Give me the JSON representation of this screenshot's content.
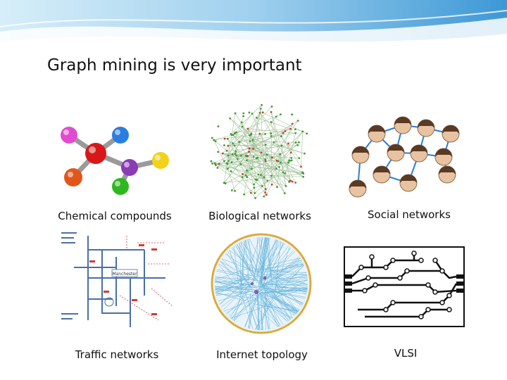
{
  "slide": {
    "title": "Graph mining is very important",
    "captions": [
      "Chemical compounds",
      "Biological networks",
      "Social networks",
      "Traffic networks",
      "Internet topology",
      "VLSI"
    ],
    "colors": {
      "banner_blue": "#4aa6dc",
      "banner_light": "#cfe9f7",
      "atom_pink": "#e24bd0",
      "atom_blue": "#2a7de1",
      "atom_red": "#d81818",
      "atom_orange": "#e0571a",
      "atom_purple": "#8b3bb5",
      "atom_green": "#2db81f",
      "atom_yellow": "#f2d21a",
      "bio_green": "#3f9a2f",
      "bio_red": "#c83b2f",
      "internet_blue": "#2b98cf",
      "traffic_blue": "#4a6fa8",
      "traffic_red": "#d23a3a"
    },
    "traffic_label": "Manchester"
  }
}
